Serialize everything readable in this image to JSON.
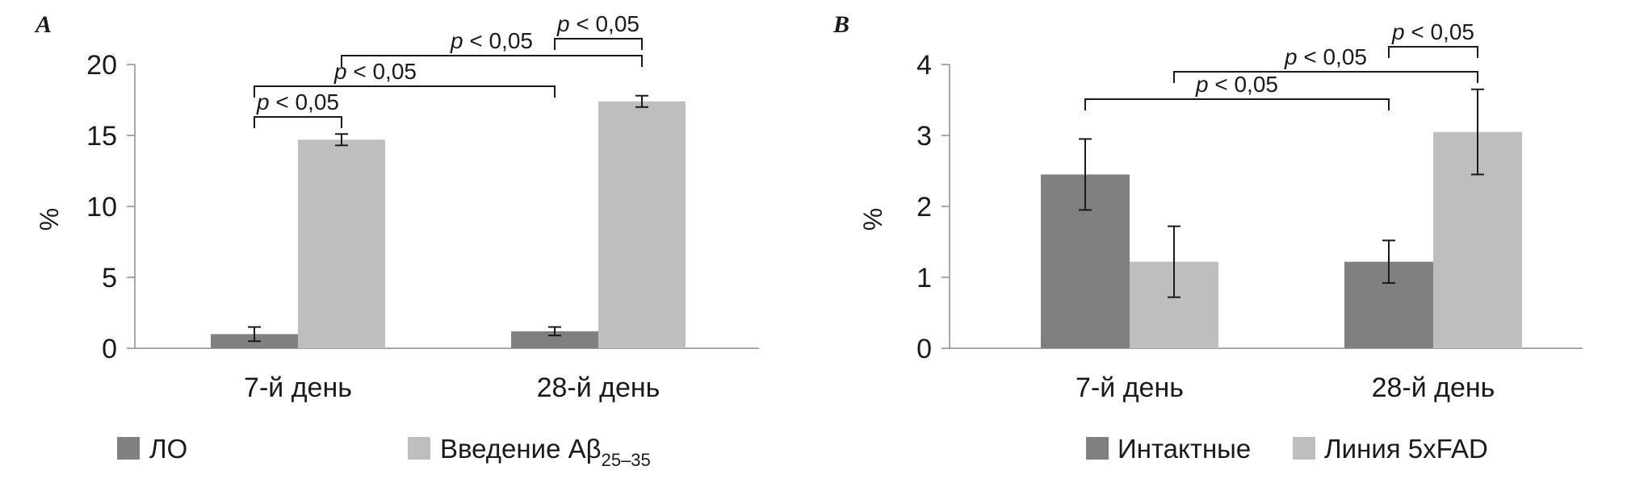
{
  "chart_data": [
    {
      "panel": "A",
      "type": "bar",
      "title": "",
      "xlabel": "",
      "ylabel": "%",
      "ylim": [
        0,
        20
      ],
      "yticks": [
        0,
        5,
        10,
        15,
        20
      ],
      "grid": false,
      "legend_position": "bottom",
      "categories": [
        "7-й день",
        "28-й день"
      ],
      "series": [
        {
          "name": "ЛО",
          "color": "#808080",
          "values": [
            1.0,
            1.2
          ],
          "errors": [
            0.5,
            0.3
          ]
        },
        {
          "name": "Введение Aβ",
          "name_subscript": "25–35",
          "color": "#bebebe",
          "values": [
            14.7,
            17.4
          ],
          "errors": [
            0.4,
            0.4
          ]
        }
      ],
      "significance": [
        {
          "from": [
            0,
            0
          ],
          "to": [
            0,
            1
          ],
          "text": "p < 0,05"
        },
        {
          "from": [
            0,
            0
          ],
          "to": [
            1,
            0
          ],
          "text": "p < 0,05"
        },
        {
          "from": [
            0,
            1
          ],
          "to": [
            1,
            1
          ],
          "text": "p < 0,05"
        },
        {
          "from": [
            1,
            0
          ],
          "to": [
            1,
            1
          ],
          "text": "p < 0,05"
        }
      ]
    },
    {
      "panel": "B",
      "type": "bar",
      "title": "",
      "xlabel": "",
      "ylabel": "%",
      "ylim": [
        0,
        4
      ],
      "yticks": [
        0,
        1,
        2,
        3,
        4
      ],
      "grid": false,
      "legend_position": "bottom",
      "categories": [
        "7-й день",
        "28-й день"
      ],
      "series": [
        {
          "name": "Интактные",
          "color": "#808080",
          "values": [
            2.45,
            1.22
          ],
          "errors": [
            0.5,
            0.3
          ]
        },
        {
          "name": "Линия 5xFAD",
          "color": "#bebebe",
          "values": [
            1.22,
            3.05
          ],
          "errors": [
            0.5,
            0.6
          ]
        }
      ],
      "significance": [
        {
          "from": [
            0,
            0
          ],
          "to": [
            1,
            0
          ],
          "text": "p < 0,05"
        },
        {
          "from": [
            0,
            1
          ],
          "to": [
            1,
            1
          ],
          "text": "p < 0,05"
        },
        {
          "from": [
            1,
            0
          ],
          "to": [
            1,
            1
          ],
          "text": "p < 0,05"
        }
      ]
    }
  ]
}
